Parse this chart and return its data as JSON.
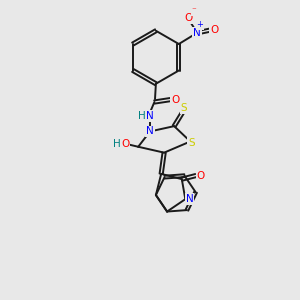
{
  "bg_color": "#e8e8e8",
  "bond_color": "#1a1a1a",
  "atom_colors": {
    "O": "#ff0000",
    "N": "#0000ff",
    "S": "#cccc00",
    "H": "#008080"
  },
  "lw": 1.4,
  "fs": 7.5
}
